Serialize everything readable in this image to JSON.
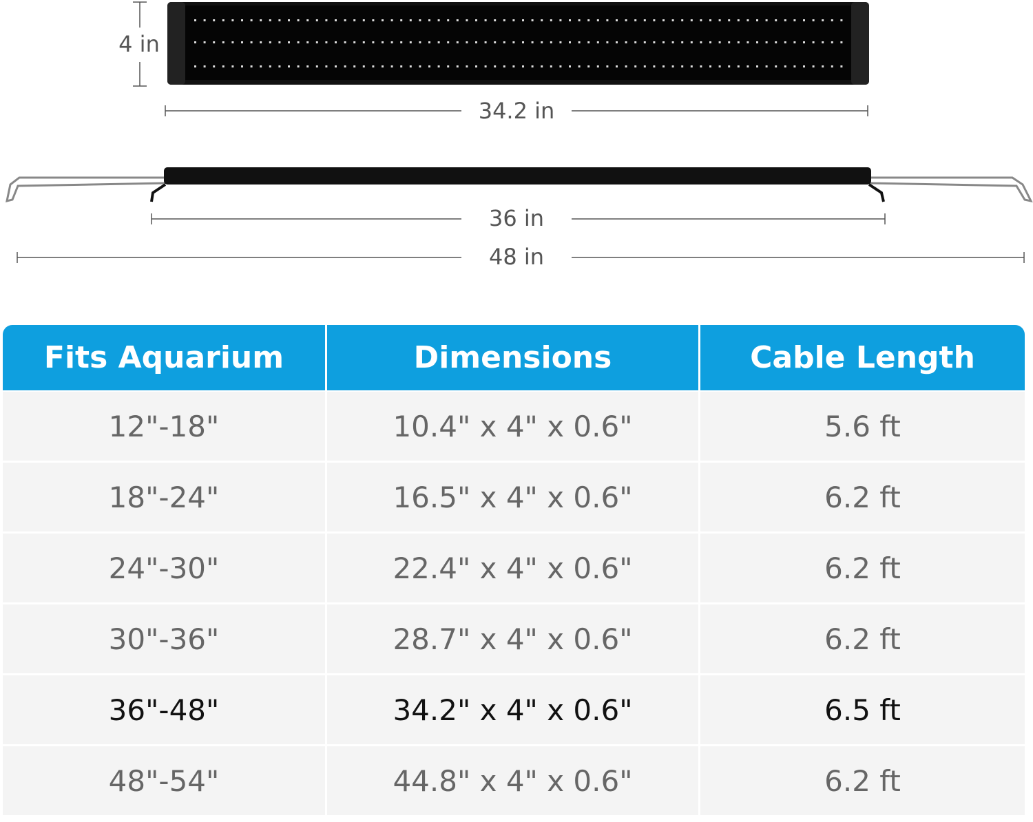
{
  "dimensions": {
    "height": "4 in",
    "bar_length": "34.2 in",
    "min_length": "36 in",
    "max_length": "48 in"
  },
  "table": {
    "header": [
      "Fits Aquarium",
      "Dimensions",
      "Cable Length"
    ],
    "rows": [
      [
        "12\"-18\"",
        "10.4\" x 4\" x 0.6\"",
        "5.6 ft"
      ],
      [
        "18\"-24\"",
        "16.5\" x 4\" x 0.6\"",
        "6.2 ft"
      ],
      [
        "24\"-30\"",
        "22.4\" x 4\" x 0.6\"",
        "6.2 ft"
      ],
      [
        "30\"-36\"",
        "28.7\" x 4\" x 0.6\"",
        "6.2 ft"
      ],
      [
        "36\"-48\"",
        "34.2\" x 4\" x 0.6\"",
        "6.5 ft"
      ],
      [
        "48\"-54\"",
        "44.8\" x 4\" x 0.6\"",
        "6.2 ft"
      ]
    ]
  }
}
